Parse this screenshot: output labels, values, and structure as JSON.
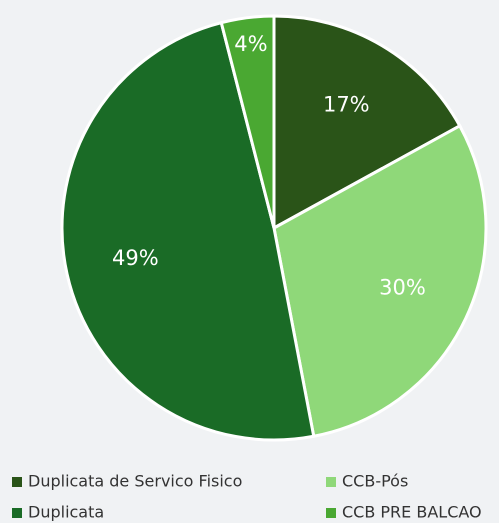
{
  "chart_data": {
    "type": "pie",
    "categories": [
      "Duplicata de Servico Fisico",
      "CCB-Pós",
      "Duplicata",
      "CCB PRE BALCAO"
    ],
    "values": [
      17,
      30,
      49,
      4
    ],
    "value_labels": [
      "17%",
      "30%",
      "49%",
      "4%"
    ],
    "colors": [
      "#2a5418",
      "#8fd879",
      "#1a6b26",
      "#4aa832"
    ]
  }
}
